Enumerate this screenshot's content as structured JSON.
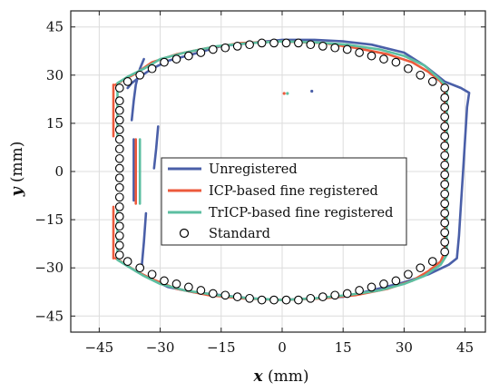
{
  "chart_data": {
    "type": "line",
    "xlabel_var": "x",
    "xlabel_unit": " (mm)",
    "ylabel_var": "y",
    "ylabel_unit": " (mm)",
    "xlim": [
      -52,
      50
    ],
    "ylim": [
      -50,
      50
    ],
    "xticks": [
      -45,
      -30,
      -15,
      0,
      15,
      30,
      45
    ],
    "yticks": [
      -45,
      -30,
      -15,
      0,
      15,
      30,
      45
    ],
    "tick_labels_x": [
      "−45",
      "−30",
      "−15",
      "0",
      "15",
      "30",
      "45"
    ],
    "tick_labels_y": [
      "−45",
      "−30",
      "−15",
      "0",
      "15",
      "30",
      "45"
    ],
    "grid": true,
    "legend_position": "center",
    "series": [
      {
        "name": "Unregistered",
        "color": "#4a5fa8",
        "segments": [
          [
            [
              -38,
              26
            ],
            [
              -37,
              27.5
            ],
            [
              -35,
              29.5
            ],
            [
              -32,
              32
            ],
            [
              -28,
              34.5
            ],
            [
              -22,
              36.5
            ],
            [
              -15,
              39
            ],
            [
              -8,
              40
            ],
            [
              0,
              41
            ],
            [
              8,
              41
            ],
            [
              15,
              40.5
            ],
            [
              22,
              39.5
            ],
            [
              30,
              37
            ],
            [
              35,
              33
            ],
            [
              40,
              28
            ],
            [
              44,
              26
            ],
            [
              46,
              24.5
            ],
            [
              45.5,
              20
            ],
            [
              45,
              10
            ],
            [
              44.5,
              0
            ],
            [
              44,
              -10
            ],
            [
              43.5,
              -20
            ],
            [
              43,
              -27
            ],
            [
              41,
              -29
            ],
            [
              36,
              -32
            ],
            [
              30,
              -34.5
            ],
            [
              22,
              -37
            ],
            [
              15,
              -39
            ],
            [
              8,
              -39.5
            ],
            [
              0,
              -40
            ],
            [
              -8,
              -39.5
            ],
            [
              -15,
              -38.5
            ],
            [
              -22,
              -37.5
            ],
            [
              -28,
              -36
            ],
            [
              -33,
              -33
            ],
            [
              -36,
              -31
            ]
          ],
          [
            [
              -37,
              16
            ],
            [
              -36.5,
              22
            ],
            [
              -36,
              27
            ],
            [
              -35,
              32
            ],
            [
              -34,
              35
            ]
          ],
          [
            [
              -33.5,
              -13
            ],
            [
              -34,
              -22
            ],
            [
              -34.5,
              -29
            ]
          ],
          [
            [
              -31.5,
              1
            ],
            [
              -31,
              7
            ],
            [
              -30.5,
              14
            ]
          ],
          [
            [
              -36.5,
              -9
            ],
            [
              -36.5,
              10
            ]
          ]
        ]
      },
      {
        "name": "ICP-based fine registered",
        "color": "#ec5a3c",
        "segments": [
          [
            [
              -41,
              27
            ],
            [
              -39,
              28.5
            ],
            [
              -36,
              30.5
            ],
            [
              -32,
              34
            ],
            [
              -26,
              36.5
            ],
            [
              -18,
              38.5
            ],
            [
              -10,
              40
            ],
            [
              0,
              40.5
            ],
            [
              10,
              40
            ],
            [
              18,
              38.5
            ],
            [
              26,
              36.5
            ],
            [
              32,
              34
            ],
            [
              36,
              31
            ],
            [
              39,
              28
            ],
            [
              40,
              26
            ],
            [
              40,
              15
            ],
            [
              40,
              0
            ],
            [
              40,
              -15
            ],
            [
              40,
              -25
            ],
            [
              39,
              -28
            ],
            [
              36,
              -31
            ],
            [
              32,
              -34
            ],
            [
              26,
              -36.5
            ],
            [
              18,
              -38.5
            ],
            [
              10,
              -39.5
            ],
            [
              0,
              -40
            ],
            [
              -10,
              -39.5
            ],
            [
              -18,
              -38.5
            ],
            [
              -26,
              -36.5
            ],
            [
              -32,
              -33.5
            ],
            [
              -36,
              -31
            ],
            [
              -39,
              -28.5
            ],
            [
              -41,
              -27
            ]
          ],
          [
            [
              -41.5,
              -27
            ],
            [
              -41.5,
              -11
            ]
          ],
          [
            [
              -41.5,
              11
            ],
            [
              -41.5,
              27
            ]
          ],
          [
            [
              -36,
              -10
            ],
            [
              -36,
              10
            ]
          ]
        ]
      },
      {
        "name": "TrICP-based fine registered",
        "color": "#5cbfa1",
        "segments": [
          [
            [
              -40.5,
              27.5
            ],
            [
              -38,
              29.5
            ],
            [
              -34,
              32
            ],
            [
              -30,
              35
            ],
            [
              -24,
              37
            ],
            [
              -16,
              39
            ],
            [
              -8,
              40
            ],
            [
              0,
              40.5
            ],
            [
              8,
              40.2
            ],
            [
              16,
              39.5
            ],
            [
              24,
              38
            ],
            [
              30,
              36
            ],
            [
              35,
              33
            ],
            [
              38.5,
              29
            ],
            [
              40.5,
              26.5
            ],
            [
              40.5,
              15
            ],
            [
              40.5,
              0
            ],
            [
              40.5,
              -15
            ],
            [
              40.5,
              -26
            ],
            [
              39,
              -29
            ],
            [
              35,
              -32.5
            ],
            [
              30,
              -35
            ],
            [
              24,
              -37
            ],
            [
              16,
              -38.5
            ],
            [
              8,
              -39.5
            ],
            [
              0,
              -40
            ],
            [
              -8,
              -39.5
            ],
            [
              -16,
              -38.5
            ],
            [
              -24,
              -37
            ],
            [
              -30,
              -35
            ],
            [
              -34,
              -32.5
            ],
            [
              -38,
              -29.5
            ],
            [
              -40.5,
              -27.5
            ]
          ],
          [
            [
              -40.5,
              -27
            ],
            [
              -40.5,
              -11
            ]
          ],
          [
            [
              -40.5,
              11
            ],
            [
              -40.5,
              27
            ]
          ],
          [
            [
              -35,
              -10
            ],
            [
              -35,
              10
            ]
          ]
        ]
      },
      {
        "name": "Standard",
        "marker": "circle",
        "color": "#000000",
        "points": [
          [
            -40,
            26
          ],
          [
            -38,
            28
          ],
          [
            -35,
            30
          ],
          [
            -32,
            32
          ],
          [
            -29,
            34
          ],
          [
            -26,
            35
          ],
          [
            -23,
            36
          ],
          [
            -20,
            37
          ],
          [
            -17,
            38
          ],
          [
            -14,
            38.5
          ],
          [
            -11,
            39
          ],
          [
            -8,
            39.5
          ],
          [
            -5,
            40
          ],
          [
            -2,
            40
          ],
          [
            1,
            40
          ],
          [
            4,
            40
          ],
          [
            7,
            39.5
          ],
          [
            10,
            39
          ],
          [
            13,
            38.5
          ],
          [
            16,
            38
          ],
          [
            19,
            37
          ],
          [
            22,
            36
          ],
          [
            25,
            35
          ],
          [
            28,
            34
          ],
          [
            31,
            32
          ],
          [
            34,
            30
          ],
          [
            37,
            28
          ],
          [
            40,
            26
          ],
          [
            40,
            23
          ],
          [
            40,
            20
          ],
          [
            40,
            17
          ],
          [
            40,
            14
          ],
          [
            40,
            11
          ],
          [
            40,
            8
          ],
          [
            40,
            5
          ],
          [
            40,
            2
          ],
          [
            40,
            -1
          ],
          [
            40,
            -4
          ],
          [
            40,
            -7
          ],
          [
            40,
            -10
          ],
          [
            40,
            -13
          ],
          [
            40,
            -16
          ],
          [
            40,
            -19
          ],
          [
            40,
            -22
          ],
          [
            40,
            -25
          ],
          [
            37,
            -28
          ],
          [
            34,
            -30
          ],
          [
            31,
            -32
          ],
          [
            28,
            -34
          ],
          [
            25,
            -35
          ],
          [
            22,
            -36
          ],
          [
            19,
            -37
          ],
          [
            16,
            -38
          ],
          [
            13,
            -38.5
          ],
          [
            10,
            -39
          ],
          [
            7,
            -39.5
          ],
          [
            4,
            -40
          ],
          [
            1,
            -40
          ],
          [
            -2,
            -40
          ],
          [
            -5,
            -40
          ],
          [
            -8,
            -39.5
          ],
          [
            -11,
            -39
          ],
          [
            -14,
            -38.5
          ],
          [
            -17,
            -38
          ],
          [
            -20,
            -37
          ],
          [
            -23,
            -36
          ],
          [
            -26,
            -35
          ],
          [
            -29,
            -34
          ],
          [
            -32,
            -32
          ],
          [
            -35,
            -30
          ],
          [
            -38,
            -28
          ],
          [
            -40,
            -26
          ],
          [
            -40,
            -23
          ],
          [
            -40,
            -20
          ],
          [
            -40,
            -17
          ],
          [
            -40,
            -14
          ],
          [
            -40,
            -11
          ],
          [
            -40,
            -8
          ],
          [
            -40,
            -5
          ],
          [
            -40,
            -2
          ],
          [
            -40,
            1
          ],
          [
            -40,
            4
          ],
          [
            -40,
            7
          ],
          [
            -40,
            10
          ],
          [
            -40,
            13
          ],
          [
            -40,
            16
          ],
          [
            -40,
            19
          ],
          [
            -40,
            22
          ]
        ]
      }
    ],
    "stray_points": [
      {
        "x": 0.5,
        "y": 24.3,
        "color": "#ec5a3c"
      },
      {
        "x": 1.3,
        "y": 24.3,
        "color": "#5cbfa1"
      },
      {
        "x": 7.3,
        "y": 25,
        "color": "#4a5fa8"
      }
    ]
  }
}
